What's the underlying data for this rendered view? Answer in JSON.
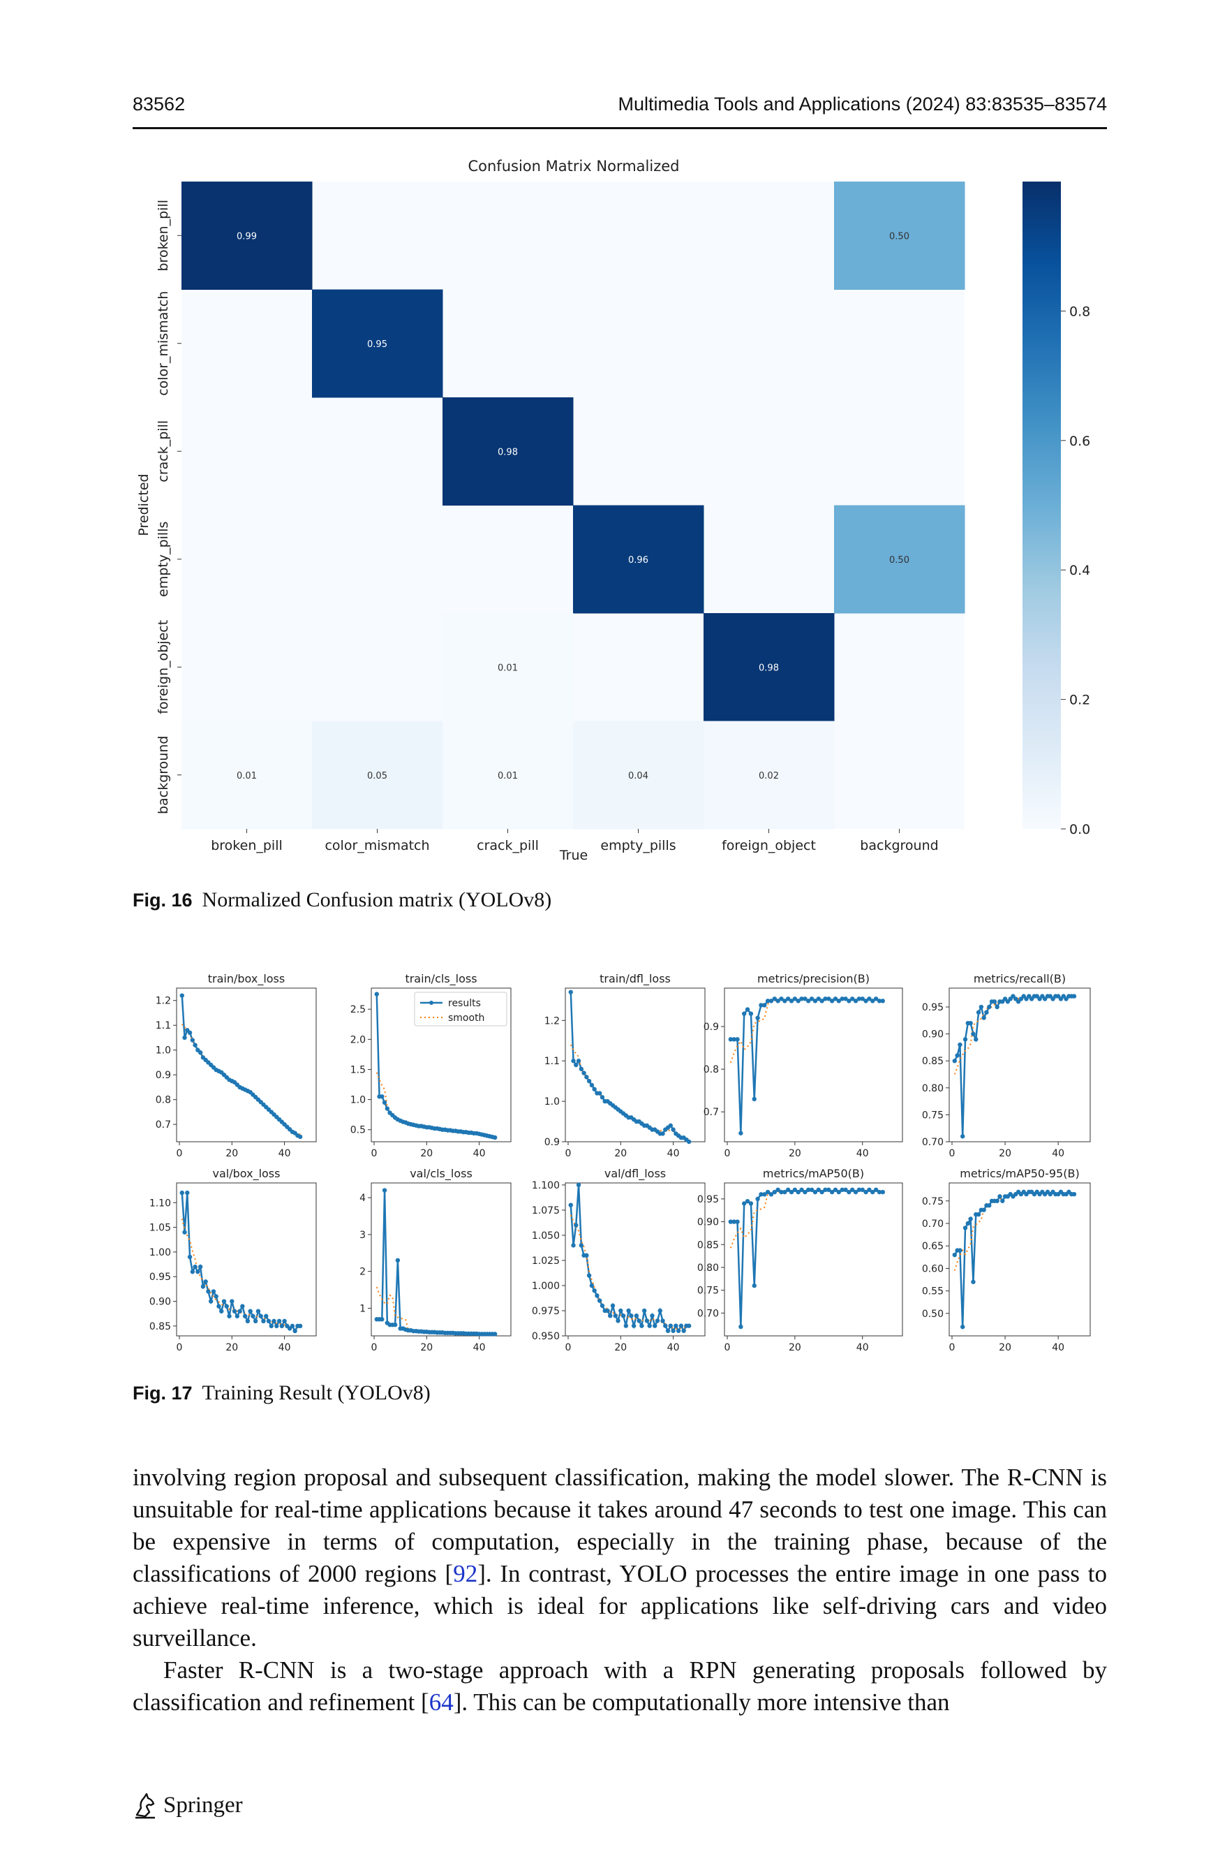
{
  "header": {
    "page_number": "83562",
    "journal": "Multimedia Tools and Applications (2024) 83:83535–83574"
  },
  "fig16": {
    "label": "Fig. 16",
    "caption": "Normalized Confusion matrix (YOLOv8)"
  },
  "fig17": {
    "label": "Fig. 17",
    "caption": "Training Result (YOLOv8)"
  },
  "body": {
    "p1": "involving region proposal and subsequent classification, making the model slower. The R-CNN is unsuitable for real-time applications because it takes around 47 seconds to test one image. This can be expensive in terms of computation, especially in the training phase, because of the classifications of 2000 regions [",
    "p1_cite": "92",
    "p1_rest": "]. In contrast, YOLO processes the entire image in one pass to achieve real-time inference, which is ideal for applications like self-driving cars and video surveillance.",
    "p2": "Faster R-CNN is a two-stage approach with a RPN generating proposals followed by classification and refinement [",
    "p2_cite": "64",
    "p2_rest": "]. This can be computationally more intensive than"
  },
  "footer": {
    "publisher": "Springer",
    "icon": "springer-horse-icon"
  },
  "chart_data": [
    {
      "type": "heatmap",
      "title": "Confusion Matrix Normalized",
      "xlabel": "True",
      "ylabel": "Predicted",
      "labels": [
        "broken_pill",
        "color_mismatch",
        "crack_pill",
        "empty_pills",
        "foreign_object",
        "background"
      ],
      "matrix": [
        [
          "0.99",
          "",
          "",
          "",
          "",
          "0.50"
        ],
        [
          "",
          "0.95",
          "",
          "",
          "",
          ""
        ],
        [
          "",
          "",
          "0.98",
          "",
          "",
          ""
        ],
        [
          "",
          "",
          "",
          "0.96",
          "",
          "0.50"
        ],
        [
          "",
          "",
          "0.01",
          "",
          "0.98",
          ""
        ],
        [
          "0.01",
          "0.05",
          "0.01",
          "0.04",
          "0.02",
          ""
        ]
      ],
      "colorbar": {
        "ticks": [
          "0.0",
          "0.2",
          "0.4",
          "0.6",
          "0.8"
        ],
        "range": [
          0,
          1
        ]
      }
    },
    {
      "type": "line",
      "legend": [
        "results",
        "smooth"
      ],
      "x_ticks": [
        "0",
        "20",
        "40"
      ],
      "panels": [
        {
          "title": "train/box_loss",
          "yticks": [
            "0.7",
            "0.8",
            "0.9",
            "1.0",
            "1.1",
            "1.2"
          ],
          "ylim": [
            0.63,
            1.25
          ],
          "values": [
            1.22,
            1.05,
            1.08,
            1.07,
            1.04,
            1.02,
            1.0,
            0.99,
            0.97,
            0.96,
            0.95,
            0.94,
            0.93,
            0.92,
            0.915,
            0.91,
            0.9,
            0.89,
            0.88,
            0.875,
            0.87,
            0.86,
            0.85,
            0.845,
            0.84,
            0.835,
            0.83,
            0.82,
            0.81,
            0.8,
            0.79,
            0.78,
            0.77,
            0.76,
            0.75,
            0.74,
            0.73,
            0.72,
            0.71,
            0.7,
            0.69,
            0.68,
            0.67,
            0.665,
            0.655,
            0.65
          ]
        },
        {
          "title": "train/cls_loss",
          "yticks": [
            "0.5",
            "1.0",
            "1.5",
            "2.0",
            "2.5"
          ],
          "ylim": [
            0.3,
            2.85
          ],
          "values": [
            2.75,
            1.05,
            1.05,
            0.95,
            0.85,
            0.78,
            0.74,
            0.7,
            0.67,
            0.65,
            0.63,
            0.62,
            0.6,
            0.59,
            0.58,
            0.57,
            0.56,
            0.56,
            0.55,
            0.54,
            0.54,
            0.53,
            0.52,
            0.52,
            0.51,
            0.5,
            0.5,
            0.49,
            0.49,
            0.48,
            0.48,
            0.47,
            0.47,
            0.46,
            0.46,
            0.45,
            0.45,
            0.44,
            0.44,
            0.43,
            0.42,
            0.41,
            0.4,
            0.39,
            0.38,
            0.37
          ]
        },
        {
          "title": "train/dfl_loss",
          "yticks": [
            "0.9",
            "1.0",
            "1.1",
            "1.2"
          ],
          "ylim": [
            0.9,
            1.28
          ],
          "values": [
            1.27,
            1.1,
            1.09,
            1.1,
            1.08,
            1.07,
            1.06,
            1.05,
            1.04,
            1.03,
            1.02,
            1.02,
            1.01,
            1.0,
            1.0,
            0.995,
            0.99,
            0.985,
            0.98,
            0.975,
            0.97,
            0.965,
            0.96,
            0.96,
            0.955,
            0.95,
            0.95,
            0.945,
            0.94,
            0.94,
            0.935,
            0.93,
            0.93,
            0.925,
            0.92,
            0.92,
            0.93,
            0.935,
            0.94,
            0.93,
            0.92,
            0.915,
            0.91,
            0.91,
            0.905,
            0.9
          ]
        },
        {
          "title": "metrics/precision(B)",
          "yticks": [
            "0.7",
            "0.8",
            "0.9"
          ],
          "ylim": [
            0.63,
            0.99
          ],
          "values": [
            0.87,
            0.87,
            0.87,
            0.65,
            0.93,
            0.94,
            0.93,
            0.73,
            0.92,
            0.95,
            0.95,
            0.96,
            0.96,
            0.965,
            0.96,
            0.965,
            0.96,
            0.965,
            0.96,
            0.965,
            0.96,
            0.965,
            0.965,
            0.96,
            0.965,
            0.96,
            0.965,
            0.96,
            0.965,
            0.965,
            0.96,
            0.965,
            0.96,
            0.965,
            0.965,
            0.96,
            0.965,
            0.96,
            0.965,
            0.965,
            0.96,
            0.965,
            0.96,
            0.965,
            0.96,
            0.96
          ]
        },
        {
          "title": "metrics/recall(B)",
          "yticks": [
            "0.70",
            "0.75",
            "0.80",
            "0.85",
            "0.90",
            "0.95"
          ],
          "ylim": [
            0.7,
            0.985
          ],
          "values": [
            0.85,
            0.86,
            0.88,
            0.71,
            0.89,
            0.92,
            0.92,
            0.9,
            0.89,
            0.94,
            0.95,
            0.93,
            0.94,
            0.95,
            0.96,
            0.96,
            0.95,
            0.96,
            0.96,
            0.965,
            0.96,
            0.965,
            0.97,
            0.965,
            0.96,
            0.965,
            0.97,
            0.965,
            0.97,
            0.965,
            0.97,
            0.97,
            0.965,
            0.97,
            0.965,
            0.97,
            0.97,
            0.965,
            0.97,
            0.97,
            0.965,
            0.97,
            0.965,
            0.97,
            0.97,
            0.97
          ]
        },
        {
          "title": "val/box_loss",
          "yticks": [
            "0.85",
            "0.90",
            "0.95",
            "1.00",
            "1.05",
            "1.10"
          ],
          "ylim": [
            0.83,
            1.14
          ],
          "values": [
            1.12,
            1.04,
            1.12,
            0.99,
            0.96,
            0.97,
            0.96,
            0.97,
            0.93,
            0.94,
            0.92,
            0.9,
            0.92,
            0.91,
            0.89,
            0.88,
            0.9,
            0.89,
            0.87,
            0.9,
            0.88,
            0.87,
            0.88,
            0.89,
            0.87,
            0.86,
            0.88,
            0.87,
            0.86,
            0.88,
            0.87,
            0.86,
            0.87,
            0.86,
            0.85,
            0.86,
            0.85,
            0.86,
            0.85,
            0.86,
            0.85,
            0.845,
            0.85,
            0.84,
            0.85,
            0.85
          ]
        },
        {
          "title": "val/cls_loss",
          "yticks": [
            "1",
            "2",
            "3",
            "4"
          ],
          "ylim": [
            0.25,
            4.4
          ],
          "values": [
            0.7,
            0.7,
            0.7,
            4.2,
            0.6,
            0.55,
            0.55,
            0.55,
            2.3,
            0.45,
            0.45,
            0.42,
            0.4,
            0.4,
            0.38,
            0.38,
            0.37,
            0.37,
            0.36,
            0.36,
            0.35,
            0.35,
            0.35,
            0.34,
            0.34,
            0.34,
            0.33,
            0.33,
            0.33,
            0.33,
            0.32,
            0.32,
            0.32,
            0.32,
            0.31,
            0.31,
            0.31,
            0.31,
            0.31,
            0.3,
            0.3,
            0.3,
            0.3,
            0.3,
            0.3,
            0.3
          ]
        },
        {
          "title": "val/dfl_loss",
          "yticks": [
            "0.950",
            "0.975",
            "1.000",
            "1.025",
            "1.050",
            "1.075",
            "1.100"
          ],
          "ylim": [
            0.95,
            1.102
          ],
          "values": [
            1.08,
            1.04,
            1.06,
            1.1,
            1.04,
            1.03,
            1.03,
            1.01,
            1.0,
            0.995,
            0.99,
            0.985,
            0.98,
            0.975,
            0.975,
            0.97,
            0.98,
            0.97,
            0.965,
            0.975,
            0.97,
            0.96,
            0.975,
            0.97,
            0.96,
            0.97,
            0.965,
            0.96,
            0.975,
            0.965,
            0.96,
            0.97,
            0.96,
            0.965,
            0.975,
            0.965,
            0.96,
            0.955,
            0.96,
            0.955,
            0.96,
            0.955,
            0.96,
            0.955,
            0.96,
            0.96
          ]
        },
        {
          "title": "metrics/mAP50(B)",
          "yticks": [
            "0.70",
            "0.75",
            "0.80",
            "0.85",
            "0.90",
            "0.95"
          ],
          "ylim": [
            0.65,
            0.985
          ],
          "values": [
            0.9,
            0.9,
            0.9,
            0.67,
            0.94,
            0.945,
            0.94,
            0.76,
            0.95,
            0.96,
            0.96,
            0.965,
            0.96,
            0.965,
            0.97,
            0.965,
            0.965,
            0.97,
            0.965,
            0.97,
            0.965,
            0.97,
            0.965,
            0.97,
            0.97,
            0.965,
            0.97,
            0.965,
            0.97,
            0.97,
            0.965,
            0.97,
            0.965,
            0.97,
            0.97,
            0.965,
            0.97,
            0.965,
            0.97,
            0.97,
            0.965,
            0.97,
            0.965,
            0.97,
            0.965,
            0.965
          ]
        },
        {
          "title": "metrics/mAP50-95(B)",
          "yticks": [
            "0.50",
            "0.55",
            "0.60",
            "0.65",
            "0.70",
            "0.75"
          ],
          "ylim": [
            0.45,
            0.79
          ],
          "values": [
            0.63,
            0.64,
            0.64,
            0.47,
            0.69,
            0.7,
            0.71,
            0.57,
            0.72,
            0.72,
            0.73,
            0.73,
            0.74,
            0.74,
            0.75,
            0.75,
            0.75,
            0.76,
            0.75,
            0.76,
            0.76,
            0.765,
            0.76,
            0.765,
            0.77,
            0.765,
            0.77,
            0.765,
            0.77,
            0.77,
            0.765,
            0.77,
            0.765,
            0.77,
            0.765,
            0.77,
            0.765,
            0.77,
            0.765,
            0.765,
            0.77,
            0.765,
            0.765,
            0.77,
            0.765,
            0.765
          ]
        }
      ]
    }
  ]
}
